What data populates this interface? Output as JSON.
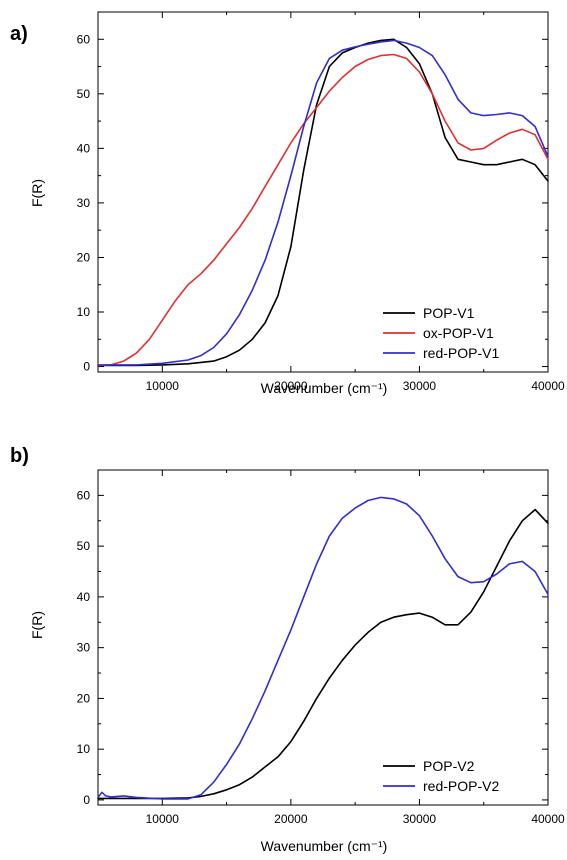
{
  "chart_data": [
    {
      "panel_label": "a)",
      "type": "line",
      "xlabel": "Wavenumber (cm⁻¹)",
      "ylabel": "F(R)",
      "xlim": [
        5000,
        40000
      ],
      "ylim": [
        -1,
        65
      ],
      "xticks": [
        10000,
        20000,
        30000,
        40000
      ],
      "yticks": [
        0,
        10,
        20,
        30,
        40,
        50,
        60
      ],
      "grid": false,
      "legend_position": "bottom-right",
      "series": [
        {
          "name": "POP-V1",
          "color": "#000000",
          "x": [
            5000,
            8000,
            10000,
            12000,
            14000,
            15000,
            16000,
            17000,
            18000,
            19000,
            20000,
            21000,
            22000,
            23000,
            24000,
            25000,
            26000,
            27000,
            28000,
            29000,
            30000,
            31000,
            32000,
            33000,
            34000,
            35000,
            36000,
            37000,
            38000,
            39000,
            40000
          ],
          "y": [
            0.2,
            0.2,
            0.3,
            0.5,
            1.0,
            1.8,
            3.0,
            5.0,
            8.0,
            13.0,
            22.0,
            36.0,
            48.0,
            55.0,
            57.5,
            58.5,
            59.3,
            59.8,
            60.0,
            58.5,
            55.5,
            50.0,
            42.0,
            38.0,
            37.5,
            37.0,
            37.0,
            37.5,
            38.0,
            37.0,
            34.0
          ]
        },
        {
          "name": "ox-POP-V1",
          "color": "#e03030",
          "x": [
            5000,
            6000,
            7000,
            8000,
            9000,
            10000,
            11000,
            12000,
            13000,
            14000,
            15000,
            16000,
            17000,
            18000,
            19000,
            20000,
            21000,
            22000,
            23000,
            24000,
            25000,
            26000,
            27000,
            28000,
            29000,
            30000,
            31000,
            32000,
            33000,
            34000,
            35000,
            36000,
            37000,
            38000,
            39000,
            40000
          ],
          "y": [
            0.2,
            0.3,
            1.0,
            2.5,
            5.0,
            8.5,
            12.0,
            15.0,
            17.0,
            19.5,
            22.5,
            25.5,
            29.0,
            33.0,
            37.0,
            41.0,
            44.5,
            47.5,
            50.5,
            53.0,
            55.0,
            56.3,
            57.0,
            57.2,
            56.5,
            54.0,
            50.0,
            45.0,
            41.0,
            39.7,
            40.0,
            41.5,
            42.8,
            43.5,
            42.5,
            38.0
          ]
        },
        {
          "name": "red-POP-V1",
          "color": "#2f2fd0",
          "x": [
            5000,
            8000,
            10000,
            12000,
            13000,
            14000,
            15000,
            16000,
            17000,
            18000,
            19000,
            20000,
            21000,
            22000,
            23000,
            24000,
            25000,
            26000,
            27000,
            28000,
            29000,
            30000,
            31000,
            32000,
            33000,
            34000,
            35000,
            36000,
            37000,
            38000,
            39000,
            40000
          ],
          "y": [
            0.3,
            0.3,
            0.6,
            1.2,
            2.0,
            3.5,
            6.0,
            9.5,
            14.0,
            19.5,
            26.5,
            35.0,
            44.0,
            52.0,
            56.5,
            58.0,
            58.6,
            59.1,
            59.5,
            59.8,
            59.3,
            58.5,
            57.0,
            53.5,
            49.0,
            46.5,
            46.0,
            46.2,
            46.5,
            46.0,
            44.0,
            38.5
          ]
        }
      ]
    },
    {
      "panel_label": "b)",
      "type": "line",
      "xlabel": "Wavenumber (cm⁻¹)",
      "ylabel": "F(R)",
      "xlim": [
        5000,
        40000
      ],
      "ylim": [
        -1,
        65
      ],
      "xticks": [
        10000,
        20000,
        30000,
        40000
      ],
      "yticks": [
        0,
        10,
        20,
        30,
        40,
        50,
        60
      ],
      "grid": false,
      "legend_position": "bottom-right",
      "series": [
        {
          "name": "POP-V2",
          "color": "#000000",
          "x": [
            5000,
            8000,
            10000,
            12000,
            13000,
            14000,
            15000,
            16000,
            17000,
            18000,
            19000,
            20000,
            21000,
            22000,
            23000,
            24000,
            25000,
            26000,
            27000,
            28000,
            29000,
            30000,
            31000,
            32000,
            33000,
            34000,
            35000,
            36000,
            37000,
            38000,
            39000,
            40000
          ],
          "y": [
            0.3,
            0.3,
            0.3,
            0.4,
            0.7,
            1.2,
            2.0,
            3.0,
            4.5,
            6.5,
            8.5,
            11.5,
            15.5,
            20.0,
            24.0,
            27.5,
            30.5,
            33.0,
            35.0,
            36.0,
            36.5,
            36.8,
            36.0,
            34.5,
            34.5,
            37.0,
            41.0,
            46.0,
            51.0,
            55.0,
            57.2,
            54.5
          ]
        },
        {
          "name": "red-POP-V2",
          "color": "#2f2fd0",
          "x": [
            5000,
            5300,
            5600,
            6000,
            7000,
            8000,
            10000,
            12000,
            13000,
            14000,
            15000,
            16000,
            17000,
            18000,
            19000,
            20000,
            21000,
            22000,
            23000,
            24000,
            25000,
            26000,
            27000,
            28000,
            29000,
            30000,
            31000,
            32000,
            33000,
            34000,
            35000,
            36000,
            37000,
            38000,
            39000,
            40000
          ],
          "y": [
            0.5,
            1.5,
            0.8,
            0.6,
            0.8,
            0.5,
            0.2,
            0.2,
            1.0,
            3.5,
            7.0,
            11.0,
            16.0,
            21.5,
            27.5,
            33.5,
            40.0,
            46.5,
            52.0,
            55.5,
            57.5,
            59.0,
            59.6,
            59.3,
            58.3,
            56.0,
            52.0,
            47.5,
            44.0,
            42.8,
            43.0,
            44.5,
            46.5,
            47.0,
            45.0,
            40.5
          ]
        }
      ]
    }
  ]
}
